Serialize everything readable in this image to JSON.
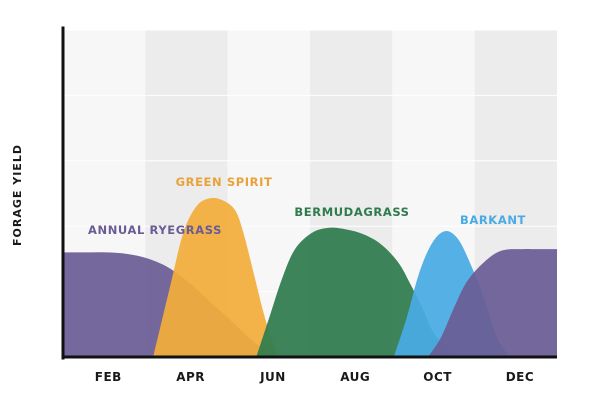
{
  "chart_data": {
    "type": "area",
    "title": "",
    "xlabel": "",
    "ylabel": "FORAGE YIELD",
    "x_ticks": [
      "FEB",
      "APR",
      "JUN",
      "AUG",
      "OCT",
      "DEC"
    ],
    "x_unit": "month",
    "xlim": [
      1,
      12.5
    ],
    "ylim": [
      0,
      10
    ],
    "grid": "alternating vertical month bands",
    "series": [
      {
        "name": "ANNUAL RYEGRASS",
        "color": "#6b5c96",
        "x": [
          1,
          1.5,
          2,
          2.5,
          3,
          3.5,
          4,
          4.5,
          5,
          5.5,
          6
        ],
        "values": [
          3.2,
          3.2,
          3.2,
          3.15,
          3.0,
          2.7,
          2.2,
          1.6,
          1.0,
          0.4,
          0
        ]
      },
      {
        "name": "GREEN SPIRIT",
        "color": "#f2ad3a",
        "x": [
          3.1,
          3.5,
          3.8,
          4.1,
          4.4,
          4.7,
          5.0,
          5.2,
          5.45,
          5.7,
          6.0
        ],
        "values": [
          0,
          2.2,
          3.8,
          4.6,
          4.85,
          4.8,
          4.5,
          3.8,
          2.5,
          1.2,
          0
        ]
      },
      {
        "name": "BERMUDAGRASS",
        "color": "#2e7b4e",
        "x": [
          5.5,
          5.8,
          6.1,
          6.4,
          6.8,
          7.2,
          7.6,
          8.0,
          8.4,
          8.8,
          9.1,
          9.4,
          9.6,
          9.9,
          10.2
        ],
        "values": [
          0,
          1.2,
          2.4,
          3.3,
          3.8,
          3.95,
          3.9,
          3.75,
          3.45,
          2.9,
          2.2,
          1.4,
          0.8,
          0.3,
          0
        ]
      },
      {
        "name": "BARKANT",
        "color": "#48abe3",
        "x": [
          8.7,
          9.0,
          9.3,
          9.6,
          9.9,
          10.2,
          10.5,
          10.8,
          11.1,
          11.4
        ],
        "values": [
          0,
          1.2,
          2.6,
          3.5,
          3.85,
          3.6,
          2.8,
          1.8,
          0.6,
          0
        ]
      },
      {
        "name": "",
        "color": "#6b5c96",
        "x": [
          9.5,
          9.8,
          10.1,
          10.4,
          10.8,
          11.2,
          11.7,
          12.0,
          12.5
        ],
        "values": [
          0,
          0.6,
          1.5,
          2.3,
          2.9,
          3.25,
          3.3,
          3.3,
          3.3
        ]
      }
    ],
    "series_labels": [
      "ANNUAL RYEGRASS",
      "GREEN SPIRIT",
      "BERMUDAGRASS",
      "BARKANT"
    ],
    "series_label_colors": [
      "#6b5c96",
      "#e9a23a",
      "#2e7b4e",
      "#48abe3"
    ]
  }
}
